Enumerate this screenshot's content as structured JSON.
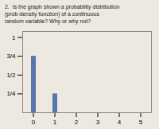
{
  "chart_data": {
    "type": "bar",
    "title": "2.  Is the graph shown a probability distribution\n(prob density function) of a continuous\nrandom variable? Why or why not?",
    "x": [
      0,
      1
    ],
    "values": [
      0.75,
      0.25
    ],
    "color": "#5577aa",
    "xlim": [
      -0.5,
      5.5
    ],
    "xticks": [
      0,
      1,
      2,
      3,
      4,
      5
    ],
    "ylim": [
      0,
      1.08
    ],
    "yticks": [
      {
        "value": 0.25,
        "label": "1/4"
      },
      {
        "value": 0.5,
        "label": "1/2"
      },
      {
        "value": 0.75,
        "label": "3/4"
      },
      1
    ],
    "grid": false
  }
}
